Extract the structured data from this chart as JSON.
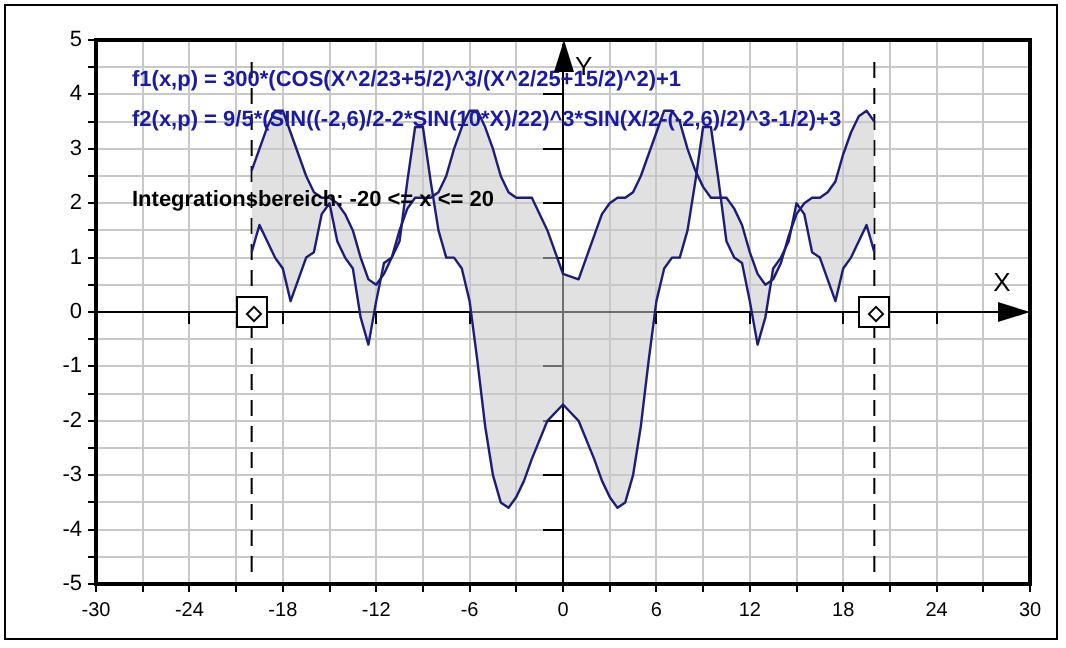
{
  "chart_data": {
    "type": "line",
    "xlabel": "X",
    "ylabel": "Y",
    "annotations": [
      "f1(x,p) = 300*(COS(X^2/23+5/2)^3/(X^2/25+15/2)^2)+1",
      "f2(x,p) = 9/5*(SIN((-2,6)/2-2*SIN(10*X)/22)^3*SIN(X/2-(-2,6)/2)^3-1/2)+3",
      "Integrationsbereich: -20 <= x <= 20"
    ],
    "x": [
      -20,
      -19.5,
      -19,
      -18.5,
      -18,
      -17.5,
      -17,
      -16.5,
      -16,
      -15.5,
      -15,
      -14.5,
      -14,
      -13.5,
      -13,
      -12.5,
      -12,
      -11.5,
      -11,
      -10.5,
      -10,
      -9.5,
      -9,
      -8.5,
      -8,
      -7.5,
      -7,
      -6.5,
      -6,
      -5.5,
      -5,
      -4.5,
      -4,
      -3.5,
      -3,
      -2.5,
      -2,
      -1,
      0,
      1,
      2,
      2.5,
      3,
      3.5,
      4,
      4.5,
      5,
      5.5,
      6,
      6.5,
      7,
      7.5,
      8,
      8.5,
      9,
      9.5,
      10,
      10.5,
      11,
      11.5,
      12,
      12.5,
      13,
      13.5,
      14,
      14.5,
      15,
      15.5,
      16,
      16.5,
      17,
      17.5,
      18,
      18.5,
      19,
      19.5,
      20
    ],
    "series": [
      {
        "color": "#1c1c7a",
        "values": [
          1.1,
          1.6,
          1.3,
          1.0,
          0.8,
          0.2,
          0.6,
          1.0,
          1.1,
          1.8,
          2.0,
          1.3,
          1.0,
          0.8,
          -0.1,
          -0.6,
          0.2,
          0.9,
          1.0,
          1.3,
          2.4,
          3.4,
          3.4,
          2.4,
          1.5,
          1.0,
          1.0,
          0.8,
          0.2,
          -0.9,
          -2.1,
          -3.0,
          -3.5,
          -3.6,
          -3.4,
          -3.1,
          -2.7,
          -2.0,
          -1.7,
          -2.0,
          -2.7,
          -3.1,
          -3.4,
          -3.6,
          -3.5,
          -3.0,
          -2.1,
          -0.9,
          0.2,
          0.8,
          1.0,
          1.0,
          1.5,
          2.4,
          3.4,
          3.4,
          2.4,
          1.3,
          1.0,
          0.9,
          0.2,
          -0.6,
          -0.1,
          0.8,
          1.0,
          1.3,
          2.0,
          1.8,
          1.1,
          1.0,
          0.6,
          0.2,
          0.8,
          1.0,
          1.3,
          1.6,
          1.1
        ]
      },
      {
        "color": "#1c1c7a",
        "values": [
          2.6,
          3.0,
          3.4,
          3.7,
          3.7,
          3.3,
          2.9,
          2.5,
          2.2,
          2.1,
          2.1,
          2.0,
          1.8,
          1.5,
          1.0,
          0.6,
          0.5,
          0.7,
          1.0,
          1.5,
          1.9,
          2.1,
          2.1,
          2.1,
          2.2,
          2.5,
          3.0,
          3.4,
          3.7,
          3.7,
          3.4,
          3.0,
          2.5,
          2.2,
          2.1,
          2.1,
          2.1,
          1.5,
          0.7,
          0.6,
          1.4,
          1.8,
          2.0,
          2.1,
          2.1,
          2.2,
          2.5,
          2.9,
          3.3,
          3.7,
          3.7,
          3.5,
          3.0,
          2.6,
          2.3,
          2.1,
          2.1,
          2.1,
          1.9,
          1.6,
          1.1,
          0.7,
          0.5,
          0.6,
          0.9,
          1.4,
          1.8,
          2.0,
          2.1,
          2.1,
          2.2,
          2.4,
          2.9,
          3.3,
          3.6,
          3.7,
          3.5
        ],
        "lower": [
          1.1,
          1.6,
          1.3,
          1.0,
          0.8,
          0.2,
          0.6,
          1.0,
          1.1,
          1.8,
          2.0,
          1.3,
          1.0,
          0.8,
          -0.1,
          -0.6,
          0.2,
          0.9,
          1.0,
          1.3,
          2.4,
          3.4,
          3.4,
          2.4,
          1.5,
          1.0,
          1.0,
          0.8,
          0.2,
          -0.9,
          -2.1,
          -3.0,
          -3.5,
          -3.6,
          -3.4,
          -3.1,
          -2.7,
          -2.0,
          -1.7,
          -2.0,
          -2.7,
          -3.1,
          -3.4,
          -3.6,
          -3.5,
          -3.0,
          -2.1,
          -0.9,
          0.2,
          0.8,
          1.0,
          1.0,
          1.5,
          2.4,
          3.4,
          3.4,
          2.4,
          1.3,
          1.0,
          0.9,
          0.2,
          -0.6,
          -0.1,
          0.8,
          1.0,
          1.3,
          2.0,
          1.8,
          1.1,
          1.0,
          0.6,
          0.2,
          0.8,
          1.0,
          1.3,
          1.6,
          1.1
        ],
        "upper": [
          2.6,
          3.0,
          3.4,
          3.7,
          3.7,
          3.3,
          2.9,
          2.5,
          2.2,
          2.1,
          2.1,
          2.0,
          1.8,
          1.5,
          1.0,
          0.6,
          0.5,
          0.7,
          1.0,
          1.5,
          1.9,
          2.1,
          2.1,
          2.1,
          2.2,
          2.5,
          3.0,
          3.4,
          3.7,
          3.7,
          3.4,
          3.0,
          2.5,
          2.2,
          2.1,
          2.1,
          2.1,
          1.5,
          0.7,
          0.6,
          1.4,
          1.8,
          2.0,
          2.1,
          2.1,
          2.2,
          2.5,
          2.9,
          3.3,
          3.7,
          3.7,
          3.5,
          3.0,
          2.6,
          2.3,
          2.1,
          2.1,
          2.1,
          1.9,
          1.6,
          1.1,
          0.7,
          0.5,
          0.6,
          0.9,
          1.4,
          1.8,
          2.0,
          2.1,
          2.1,
          2.2,
          2.4,
          2.9,
          3.3,
          3.6,
          3.7,
          3.5
        ]
      }
    ],
    "ref_lines": [
      {
        "axis": "x",
        "value": -20,
        "line_style": "dashed",
        "color": "#000000"
      },
      {
        "axis": "x",
        "value": 20,
        "line_style": "dashed",
        "color": "#000000"
      }
    ],
    "xlim": [
      -30,
      30
    ],
    "ylim": [
      -5,
      5
    ],
    "xticks": [
      -30,
      {
        "value": -27,
        "label": null
      },
      -24,
      {
        "value": -21,
        "label": null
      },
      -18,
      {
        "value": -15,
        "label": null
      },
      -12,
      {
        "value": -9,
        "label": null
      },
      -6,
      {
        "value": -3,
        "label": null
      },
      0,
      {
        "value": 3,
        "label": null
      },
      6,
      {
        "value": 9,
        "label": null
      },
      12,
      {
        "value": 15,
        "label": null
      },
      18,
      {
        "value": 21,
        "label": null
      },
      24,
      {
        "value": 27,
        "label": null
      },
      30
    ],
    "yticks": [
      -5,
      {
        "value": -4.5,
        "label": null
      },
      -4,
      {
        "value": -3.5,
        "label": null
      },
      -3,
      {
        "value": -2.5,
        "label": null
      },
      -2,
      {
        "value": -1.5,
        "label": null
      },
      -1,
      {
        "value": -0.5,
        "label": null
      },
      0,
      {
        "value": 0.5,
        "label": null
      },
      1,
      {
        "value": 1.5,
        "label": null
      },
      2,
      {
        "value": 2.5,
        "label": null
      },
      3,
      {
        "value": 3.5,
        "label": null
      },
      4,
      {
        "value": 4.5,
        "label": null
      },
      5
    ],
    "grid": true,
    "legend": false,
    "marker": "none",
    "line_style": "solid"
  }
}
